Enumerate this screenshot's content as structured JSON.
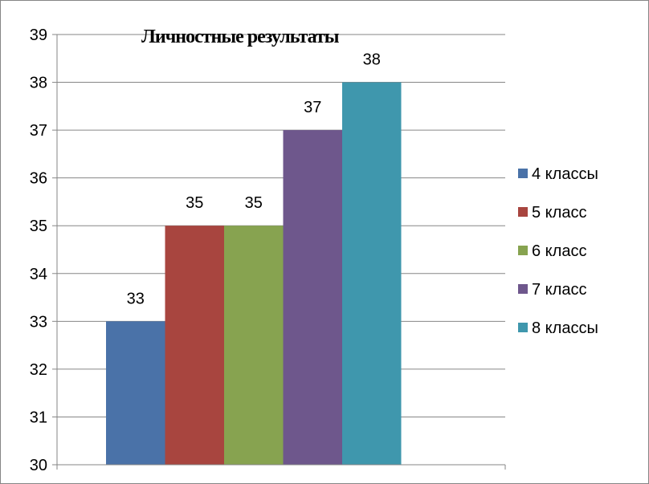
{
  "chart_data": {
    "type": "bar",
    "title": "Личностные результаты",
    "xlabel": "",
    "ylabel": "",
    "ylim": [
      30,
      39
    ],
    "yticks": [
      "30",
      "31",
      "32",
      "33",
      "34",
      "35",
      "36",
      "37",
      "38",
      "39"
    ],
    "grid": true,
    "legend_position": "right",
    "categories": [
      ""
    ],
    "series": [
      {
        "name": "4 классы",
        "values": [
          33
        ],
        "color": "#4a72a8",
        "label": "33"
      },
      {
        "name": "5 класс",
        "values": [
          35
        ],
        "color": "#a8453f",
        "label": "35"
      },
      {
        "name": "6 класс",
        "values": [
          35
        ],
        "color": "#87a350",
        "label": "35"
      },
      {
        "name": "7 класс",
        "values": [
          37
        ],
        "color": "#6e578c",
        "label": "37"
      },
      {
        "name": "8 классы",
        "values": [
          38
        ],
        "color": "#3f97ad",
        "label": "38"
      }
    ]
  }
}
